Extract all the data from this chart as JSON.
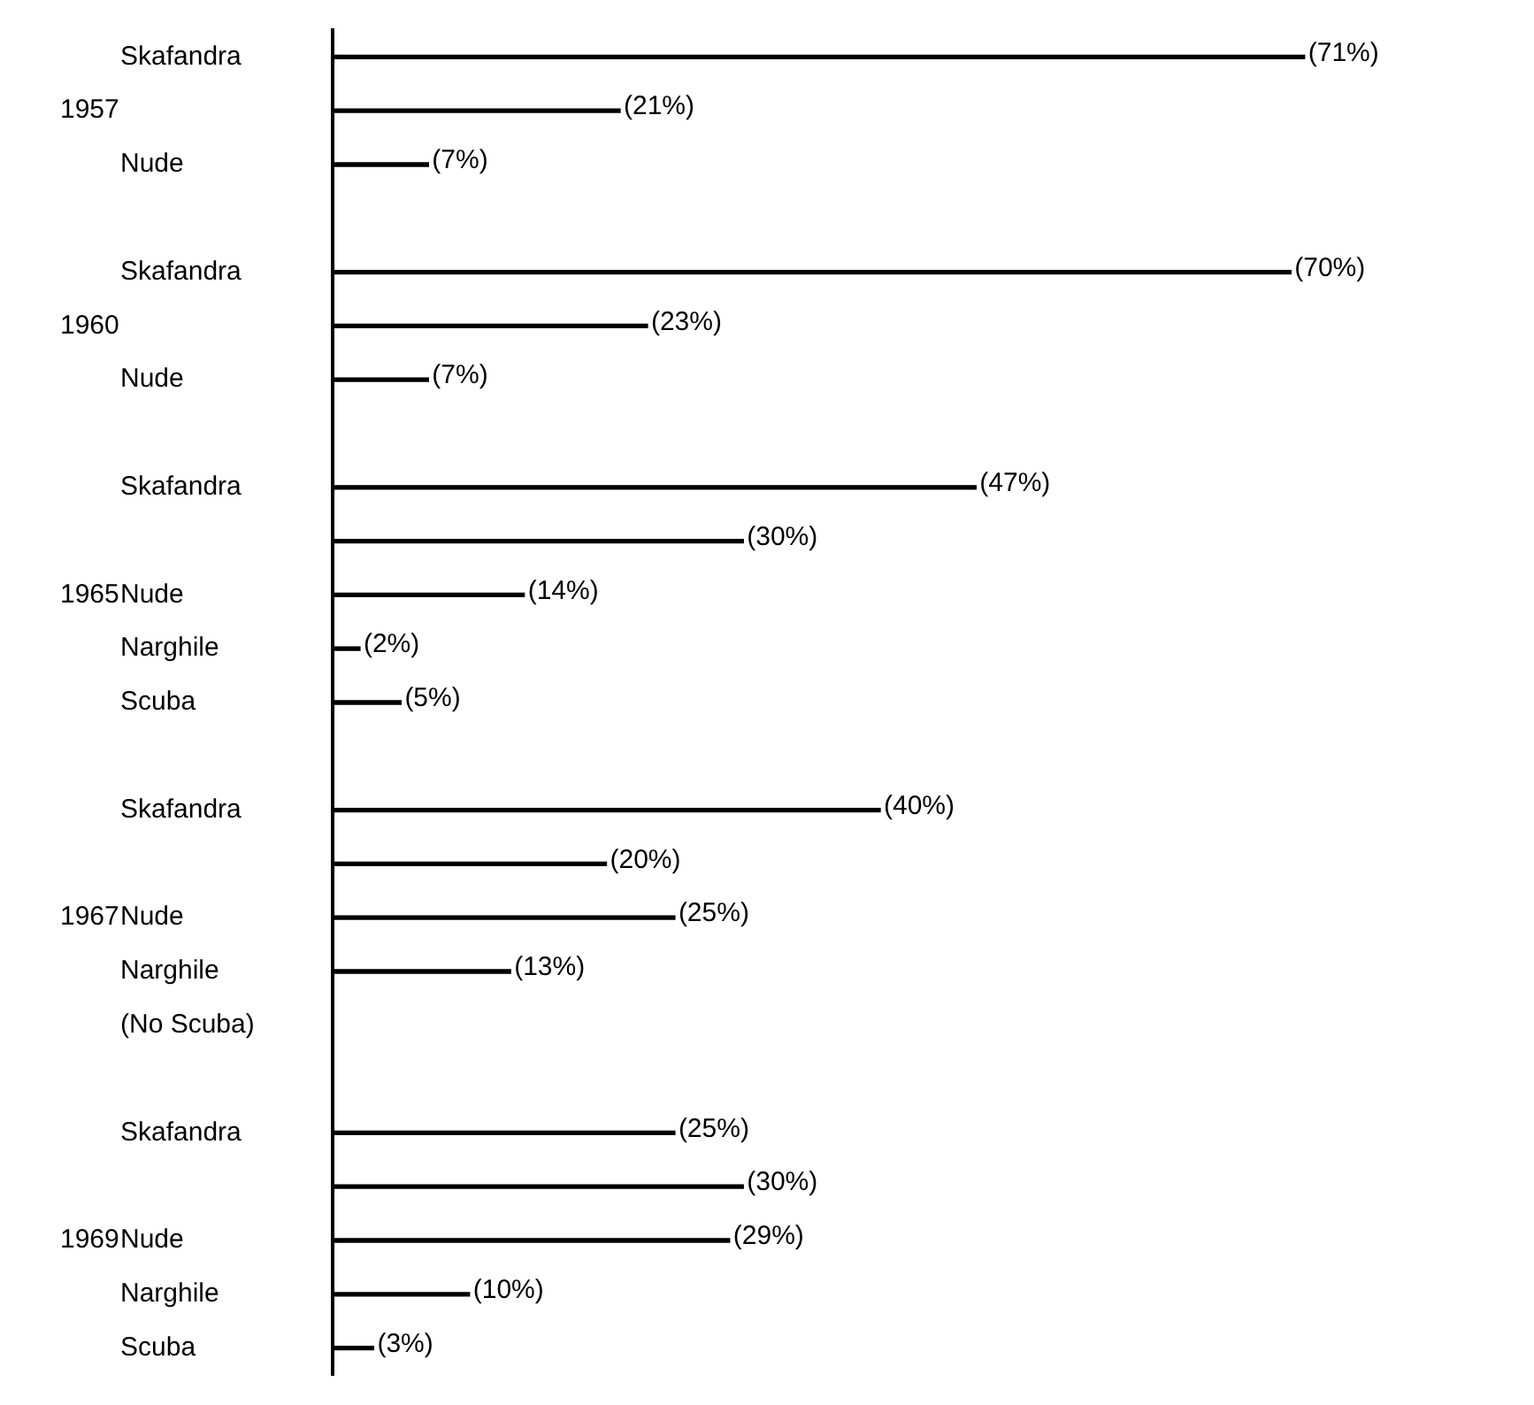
{
  "chart_data": {
    "type": "bar",
    "orientation": "horizontal",
    "color": "#000000",
    "grid": false,
    "legend": false,
    "categories": [
      "Skafandra",
      null,
      "Nude",
      null,
      "Skafandra",
      null,
      "Nude",
      null,
      "Skafandra",
      null,
      "Nude",
      "Narghile",
      "Scuba",
      null,
      "Skafandra",
      null,
      "Nude",
      "Narghile",
      "(No Scuba)",
      null,
      "Skafandra",
      null,
      "Nude",
      "Narghile",
      "Scuba"
    ],
    "values": [
      71,
      21,
      7,
      null,
      70,
      23,
      7,
      null,
      47,
      30,
      14,
      2,
      5,
      null,
      40,
      20,
      25,
      13,
      null,
      null,
      25,
      30,
      29,
      10,
      3
    ],
    "value_labels": [
      "(71%)",
      "(21%)",
      "(7%)",
      null,
      "(70%)",
      "(23%)",
      "(7%)",
      null,
      "(47%)",
      "(30%)",
      "(14%)",
      "(2%)",
      "(5%)",
      null,
      "(40%)",
      "(20%)",
      "(25%)",
      "(13%)",
      null,
      null,
      "(25%)",
      "(30%)",
      "(29%)",
      "(10%)",
      "(3%)"
    ],
    "annotations": [
      "1957",
      "1960",
      "1965",
      "1967",
      "1969"
    ]
  }
}
